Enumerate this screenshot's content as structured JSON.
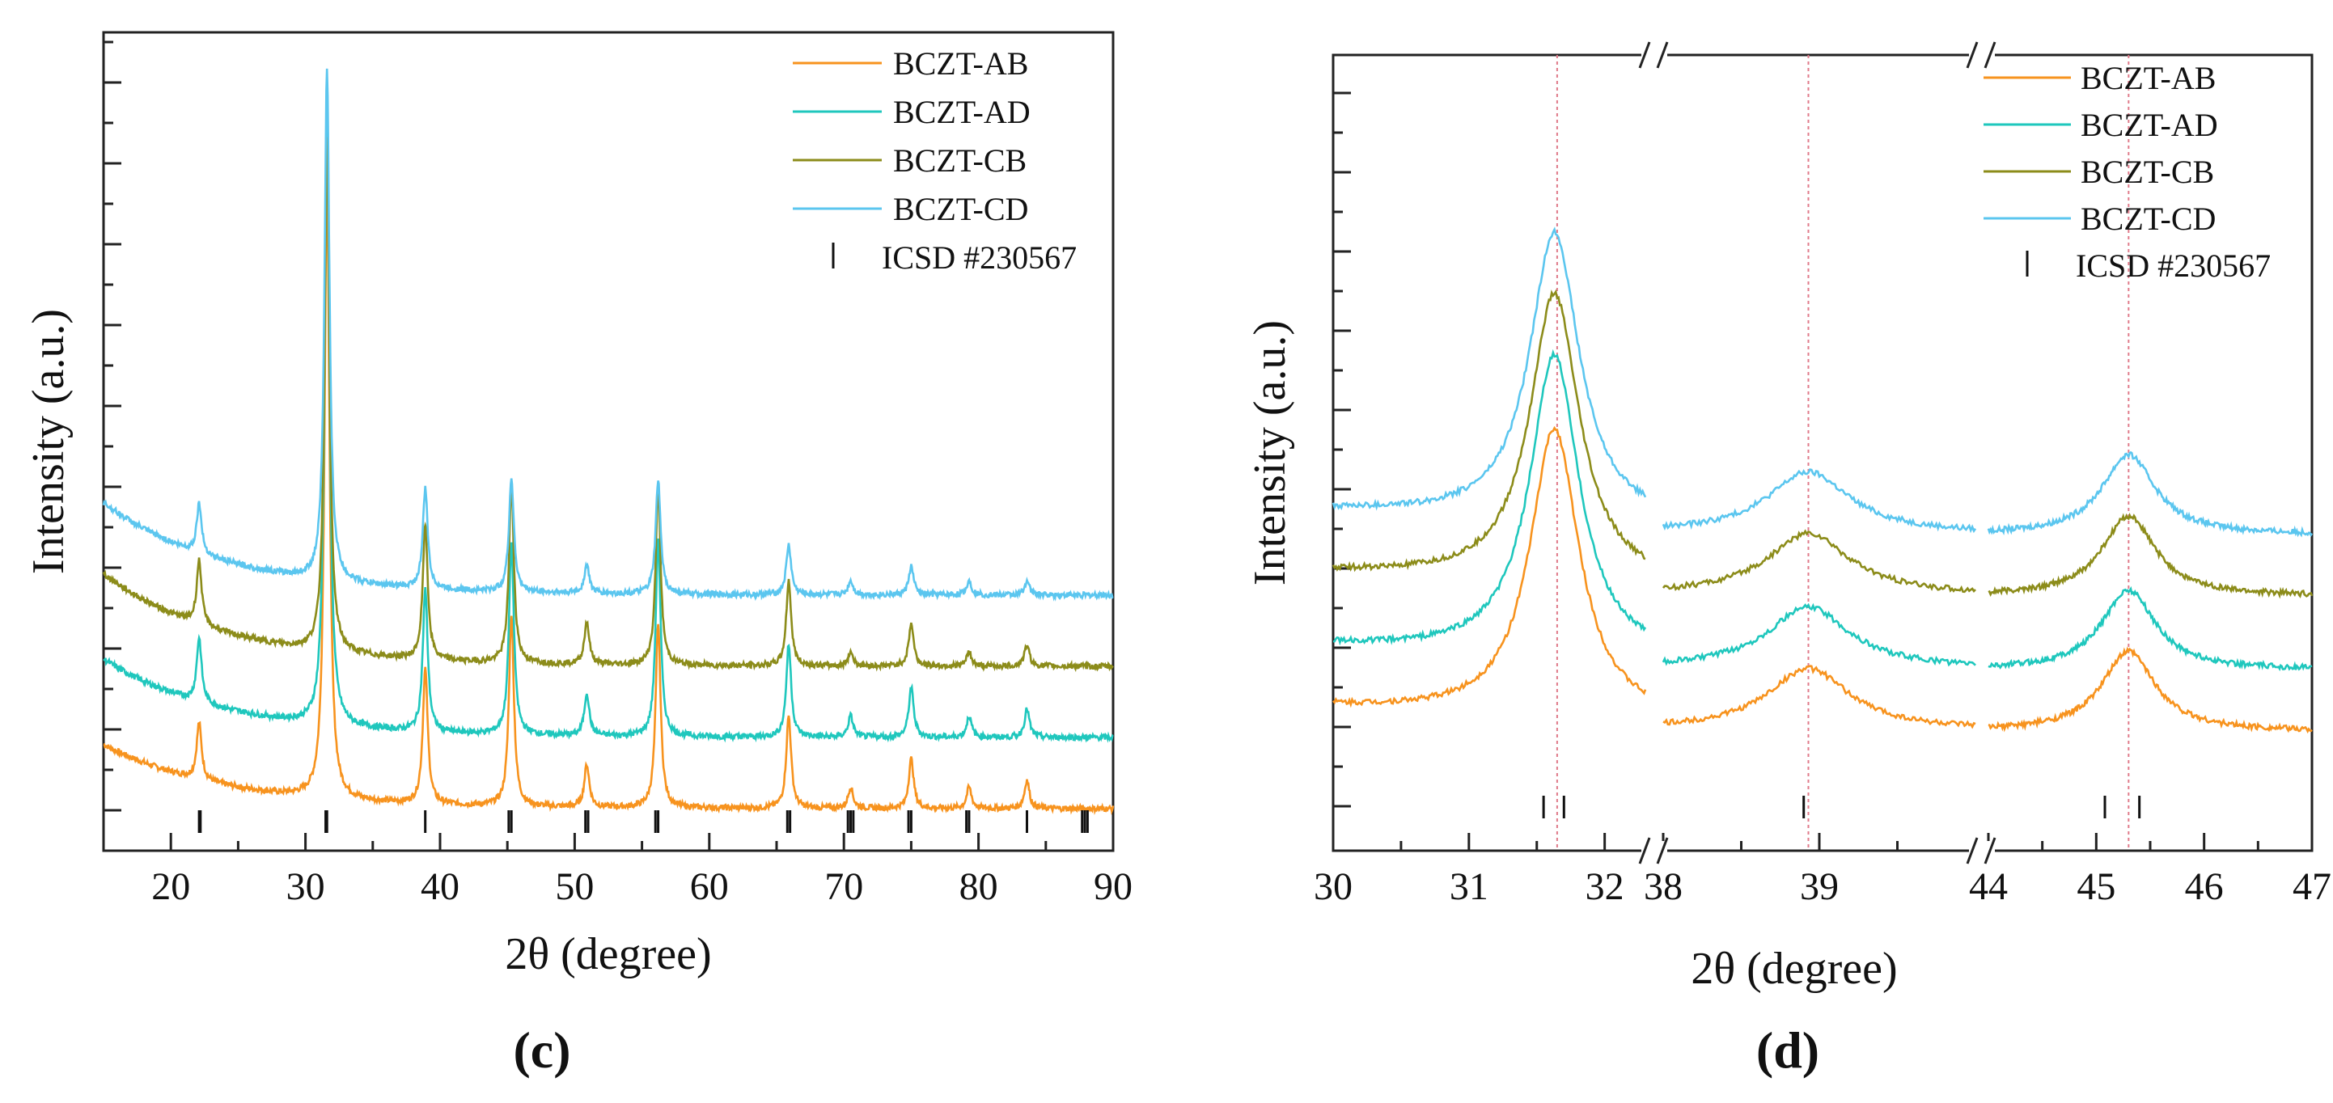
{
  "chart_data": [
    {
      "panel": "(c)",
      "type": "line",
      "xlabel": "2θ (degree)",
      "ylabel": "Intensity (a.u.)",
      "xlim": [
        15,
        90
      ],
      "xticks": [
        20,
        30,
        40,
        50,
        60,
        70,
        80,
        90
      ],
      "baseline": 88,
      "ylim": [
        0,
        100
      ],
      "legend_position": "top-right",
      "series": [
        {
          "name": "BCZT-AB",
          "color": "#f7931e",
          "offset": 0,
          "baseline_start": 9,
          "baseline_end": 0,
          "peaks": [
            [
              22.1,
              8
            ],
            [
              31.6,
              88
            ],
            [
              38.9,
              19
            ],
            [
              45.3,
              27
            ],
            [
              50.9,
              6
            ],
            [
              56.2,
              26
            ],
            [
              65.9,
              13
            ],
            [
              70.5,
              3
            ],
            [
              75.0,
              7
            ],
            [
              79.3,
              3
            ],
            [
              83.6,
              4
            ]
          ]
        },
        {
          "name": "BCZT-AD",
          "color": "#1fc7bd",
          "offset": 10,
          "baseline_start": 11,
          "baseline_end": 0,
          "peaks": [
            [
              22.1,
              9
            ],
            [
              31.6,
              88
            ],
            [
              38.9,
              20
            ],
            [
              45.3,
              27
            ],
            [
              50.9,
              6
            ],
            [
              56.2,
              28
            ],
            [
              65.9,
              13
            ],
            [
              70.5,
              3
            ],
            [
              75.0,
              7
            ],
            [
              79.3,
              3
            ],
            [
              83.6,
              4
            ]
          ]
        },
        {
          "name": "BCZT-CB",
          "color": "#8c8c1a",
          "offset": 20,
          "baseline_start": 13,
          "baseline_end": 0,
          "peaks": [
            [
              22.1,
              9
            ],
            [
              31.6,
              72
            ],
            [
              38.9,
              19
            ],
            [
              45.3,
              25
            ],
            [
              50.9,
              6
            ],
            [
              56.2,
              25
            ],
            [
              65.9,
              12
            ],
            [
              70.5,
              2
            ],
            [
              75.0,
              6
            ],
            [
              79.3,
              2
            ],
            [
              83.6,
              3
            ]
          ]
        },
        {
          "name": "BCZT-CD",
          "color": "#5bc6ef",
          "offset": 30,
          "baseline_start": 13,
          "baseline_end": 0,
          "peaks": [
            [
              22.1,
              7
            ],
            [
              31.6,
              72
            ],
            [
              38.9,
              14
            ],
            [
              45.3,
              16
            ],
            [
              50.9,
              4
            ],
            [
              56.2,
              16
            ],
            [
              65.9,
              7
            ],
            [
              70.5,
              2
            ],
            [
              75.0,
              4
            ],
            [
              79.3,
              2
            ],
            [
              83.6,
              2
            ]
          ]
        }
      ],
      "reference": {
        "name": "ICSD #230567",
        "positions": [
          22.1,
          22.2,
          31.5,
          31.6,
          38.9,
          45.1,
          45.3,
          50.8,
          51.0,
          56.0,
          56.2,
          65.8,
          66.0,
          70.3,
          70.5,
          70.7,
          74.8,
          75.0,
          79.1,
          79.3,
          83.6,
          87.7,
          87.9,
          88.1
        ]
      }
    },
    {
      "panel": "(d)",
      "type": "line",
      "xlabel": "2θ (degree)",
      "ylabel": "Intensity (a.u.)",
      "x_segments": [
        [
          30,
          32.3
        ],
        [
          38,
          40
        ],
        [
          44,
          47
        ]
      ],
      "xticks": [
        30,
        31,
        32,
        38,
        39,
        44,
        45,
        46,
        47
      ],
      "axis_breaks": [
        32.3,
        40
      ],
      "guide_lines": [
        31.65,
        38.93,
        45.3
      ],
      "ylim": [
        0,
        100
      ],
      "legend_position": "top-right",
      "series": [
        {
          "name": "BCZT-AB",
          "color": "#f7931e",
          "offset": 0,
          "peaks": [
            [
              31.63,
              47,
              0.22
            ],
            [
              38.93,
              10,
              0.32
            ],
            [
              45.3,
              13,
              0.3
            ]
          ]
        },
        {
          "name": "BCZT-AD",
          "color": "#1fc7bd",
          "offset": 10,
          "peaks": [
            [
              31.63,
              49,
              0.22
            ],
            [
              38.93,
              10,
              0.32
            ],
            [
              45.3,
              13,
              0.3
            ]
          ]
        },
        {
          "name": "BCZT-CB",
          "color": "#8c8c1a",
          "offset": 22,
          "peaks": [
            [
              31.63,
              47,
              0.22
            ],
            [
              38.93,
              10,
              0.32
            ],
            [
              45.3,
              13,
              0.3
            ]
          ]
        },
        {
          "name": "BCZT-CD",
          "color": "#5bc6ef",
          "offset": 32,
          "peaks": [
            [
              31.63,
              47,
              0.22
            ],
            [
              38.93,
              10,
              0.32
            ],
            [
              45.3,
              13,
              0.3
            ]
          ]
        }
      ],
      "reference": {
        "name": "ICSD #230567",
        "positions": [
          31.55,
          31.7,
          38.9,
          45.08,
          45.4
        ]
      }
    }
  ],
  "panels": {
    "c": "(c)",
    "d": "(d)"
  }
}
